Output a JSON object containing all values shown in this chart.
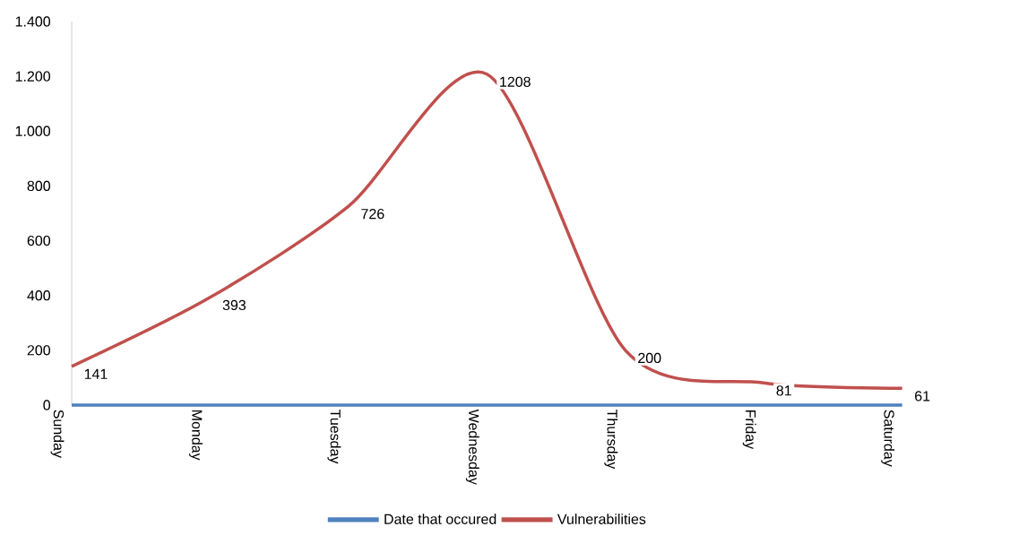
{
  "chart_data": {
    "type": "line",
    "categories": [
      "Sunday",
      "Monday",
      "Tuesday",
      "Wednesday",
      "Thursday",
      "Friday",
      "Saturday"
    ],
    "series": [
      {
        "name": "Date that occured",
        "color": "#4f81bd",
        "values": [
          0,
          0,
          0,
          0,
          0,
          0,
          0
        ]
      },
      {
        "name": "Vulnerabilities",
        "color": "#c0504d",
        "values": [
          141,
          393,
          726,
          1208,
          200,
          81,
          61
        ],
        "value_labels": [
          "141",
          "393",
          "726",
          "1208",
          "200",
          "81",
          "61"
        ]
      }
    ],
    "ylim": [
      0,
      1400
    ],
    "yticks": [
      0,
      200,
      400,
      600,
      800,
      {
        "value": 1000,
        "label": "1.000"
      },
      {
        "value": 1200,
        "label": "1.200"
      },
      {
        "value": 1400,
        "label": "1.400"
      }
    ],
    "grid": false,
    "legend": "bottom"
  }
}
